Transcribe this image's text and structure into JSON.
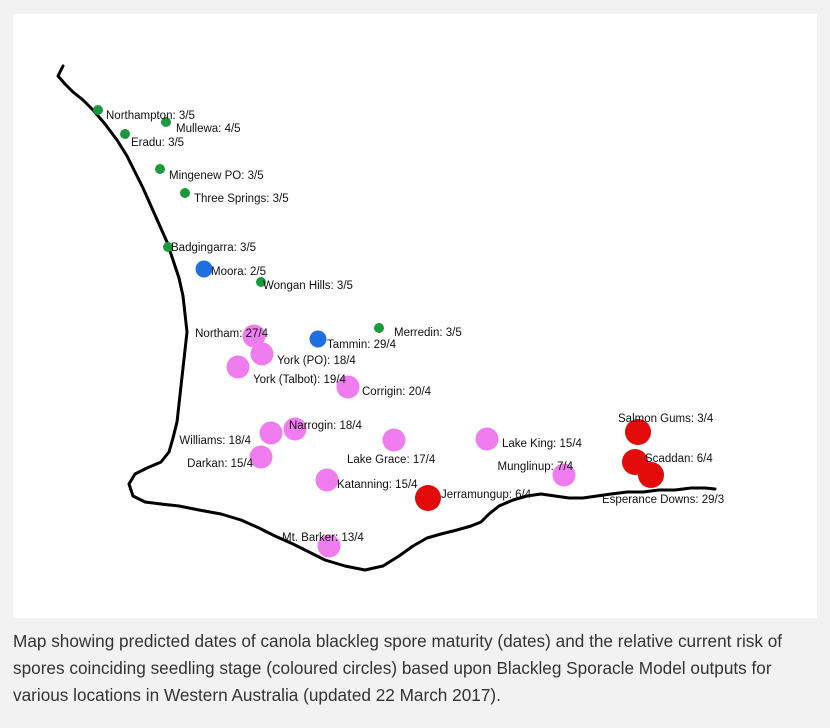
{
  "caption": "Map showing predicted dates of canola blackleg spore maturity (dates) and the relative current risk of spores coinciding seedling stage (coloured circles) based upon Blackleg Sporacle Model outputs for various locations in Western Australia (updated 22 March 2017).",
  "colors": {
    "green": "#1a9a3c",
    "blue": "#1f6fe0",
    "pink": "#f07df0",
    "red": "#e30a0a",
    "coast": "#000000"
  },
  "locations": [
    {
      "name": "Northampton: 3/5",
      "risk": "green"
    },
    {
      "name": "Mullewa: 4/5",
      "risk": "green"
    },
    {
      "name": "Eradu: 3/5",
      "risk": "green"
    },
    {
      "name": "Mingenew PO: 3/5",
      "risk": "green"
    },
    {
      "name": "Three Springs: 3/5",
      "risk": "green"
    },
    {
      "name": "Badgingarra: 3/5",
      "risk": "green"
    },
    {
      "name": "Moora: 2/5",
      "risk": "blue"
    },
    {
      "name": "Wongan Hills: 3/5",
      "risk": "green"
    },
    {
      "name": "Northam: 27/4",
      "risk": "pink"
    },
    {
      "name": "Tammin: 29/4",
      "risk": "blue"
    },
    {
      "name": "Merredin: 3/5",
      "risk": "green"
    },
    {
      "name": "York (PO): 18/4",
      "risk": "pink"
    },
    {
      "name": "York (Talbot): 19/4",
      "risk": "pink"
    },
    {
      "name": "Corrigin: 20/4",
      "risk": "pink"
    },
    {
      "name": "Narrogin: 18/4",
      "risk": "pink"
    },
    {
      "name": "Williams: 18/4",
      "risk": "pink"
    },
    {
      "name": "Darkan: 15/4",
      "risk": "pink"
    },
    {
      "name": "Lake Grace: 17/4",
      "risk": "pink"
    },
    {
      "name": "Lake King: 15/4",
      "risk": "pink"
    },
    {
      "name": "Munglinup: 7/4",
      "risk": "pink"
    },
    {
      "name": "Salmon Gums: 3/4",
      "risk": "red"
    },
    {
      "name": "Scaddan: 6/4",
      "risk": "red"
    },
    {
      "name": "Esperance Downs: 29/3",
      "risk": "red"
    },
    {
      "name": "Katanning: 15/4",
      "risk": "pink"
    },
    {
      "name": "Jerramungup: 6/4",
      "risk": "red"
    },
    {
      "name": "Mt. Barker: 13/4",
      "risk": "pink"
    }
  ]
}
